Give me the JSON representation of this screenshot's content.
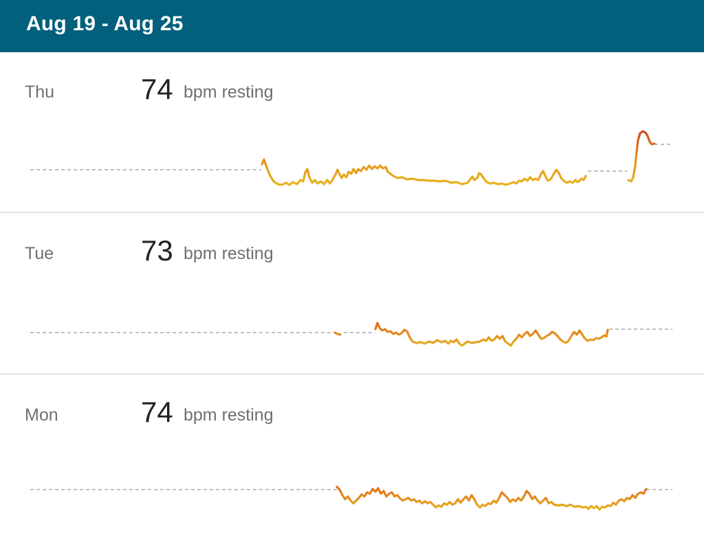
{
  "header": {
    "title": "Aug 19 - Aug 25"
  },
  "colors": {
    "header_bg": "#02607c",
    "line_low": "#e8b520",
    "line_mid": "#e38a1c",
    "line_high": "#cf3b1b",
    "baseline": "#a9a9a9"
  },
  "days": [
    {
      "label": "Thu",
      "resting_bpm": "74",
      "unit": "bpm resting"
    },
    {
      "label": "Tue",
      "resting_bpm": "73",
      "unit": "bpm resting"
    },
    {
      "label": "Mon",
      "resting_bpm": "74",
      "unit": "bpm resting"
    }
  ]
}
